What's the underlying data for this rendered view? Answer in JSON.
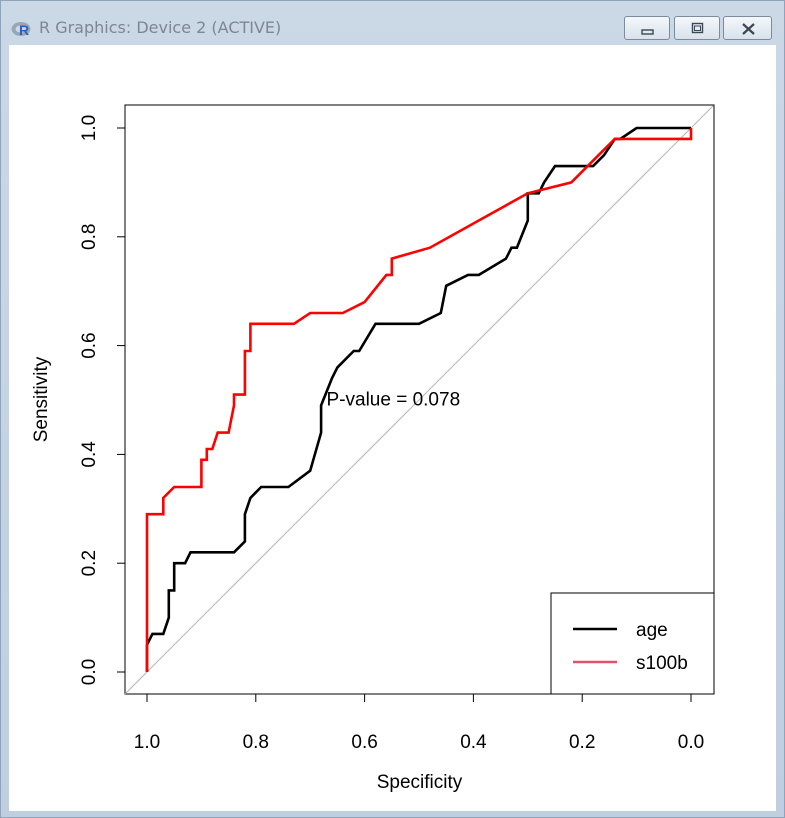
{
  "window": {
    "title": "R Graphics: Device 2 (ACTIVE)",
    "logo_letter": "R",
    "buttons": [
      "minimize",
      "maximize",
      "close"
    ]
  },
  "chart_data": {
    "type": "line",
    "xlabel": "Specificity",
    "ylabel": "Sensitivity",
    "x_reversed": true,
    "xlim": [
      1.0,
      0.0
    ],
    "ylim": [
      0.0,
      1.0
    ],
    "xticks": [
      1.0,
      0.8,
      0.6,
      0.4,
      0.2,
      0.0
    ],
    "xtick_labels": [
      "1.0",
      "0.8",
      "0.6",
      "0.4",
      "0.2",
      "0.0"
    ],
    "yticks": [
      0.0,
      0.2,
      0.4,
      0.6,
      0.8,
      1.0
    ],
    "ytick_labels": [
      "0.0",
      "0.2",
      "0.4",
      "0.6",
      "0.8",
      "1.0"
    ],
    "annotation": "P-value = 0.078",
    "annotation_at": [
      0.67,
      0.49
    ],
    "reference_line": {
      "from": [
        1.0,
        0.0
      ],
      "to": [
        0.0,
        1.0
      ],
      "color": "#b4b4b4"
    },
    "legend": {
      "position": "bottom-right",
      "entries": [
        "age",
        "s100b"
      ]
    },
    "series": [
      {
        "name": "age",
        "color": "#000000",
        "points": [
          [
            1.0,
            0.0
          ],
          [
            1.0,
            0.05
          ],
          [
            0.99,
            0.07
          ],
          [
            0.97,
            0.07
          ],
          [
            0.96,
            0.1
          ],
          [
            0.96,
            0.15
          ],
          [
            0.95,
            0.15
          ],
          [
            0.95,
            0.2
          ],
          [
            0.93,
            0.2
          ],
          [
            0.92,
            0.22
          ],
          [
            0.84,
            0.22
          ],
          [
            0.82,
            0.24
          ],
          [
            0.82,
            0.29
          ],
          [
            0.81,
            0.32
          ],
          [
            0.79,
            0.34
          ],
          [
            0.74,
            0.34
          ],
          [
            0.7,
            0.37
          ],
          [
            0.68,
            0.44
          ],
          [
            0.68,
            0.49
          ],
          [
            0.66,
            0.54
          ],
          [
            0.65,
            0.56
          ],
          [
            0.62,
            0.59
          ],
          [
            0.61,
            0.59
          ],
          [
            0.58,
            0.64
          ],
          [
            0.5,
            0.64
          ],
          [
            0.46,
            0.66
          ],
          [
            0.45,
            0.71
          ],
          [
            0.41,
            0.73
          ],
          [
            0.39,
            0.73
          ],
          [
            0.34,
            0.76
          ],
          [
            0.33,
            0.78
          ],
          [
            0.32,
            0.78
          ],
          [
            0.3,
            0.83
          ],
          [
            0.3,
            0.88
          ],
          [
            0.28,
            0.88
          ],
          [
            0.27,
            0.9
          ],
          [
            0.25,
            0.93
          ],
          [
            0.18,
            0.93
          ],
          [
            0.16,
            0.95
          ],
          [
            0.14,
            0.98
          ],
          [
            0.13,
            0.98
          ],
          [
            0.1,
            1.0
          ],
          [
            0.0,
            1.0
          ]
        ]
      },
      {
        "name": "s100b",
        "color": "#ff0000",
        "legend_color": "#df536b",
        "points": [
          [
            1.0,
            0.0
          ],
          [
            1.0,
            0.29
          ],
          [
            0.97,
            0.29
          ],
          [
            0.97,
            0.32
          ],
          [
            0.95,
            0.34
          ],
          [
            0.9,
            0.34
          ],
          [
            0.9,
            0.39
          ],
          [
            0.89,
            0.39
          ],
          [
            0.89,
            0.41
          ],
          [
            0.88,
            0.41
          ],
          [
            0.87,
            0.44
          ],
          [
            0.85,
            0.44
          ],
          [
            0.84,
            0.49
          ],
          [
            0.84,
            0.51
          ],
          [
            0.82,
            0.51
          ],
          [
            0.82,
            0.59
          ],
          [
            0.81,
            0.59
          ],
          [
            0.81,
            0.64
          ],
          [
            0.73,
            0.64
          ],
          [
            0.7,
            0.66
          ],
          [
            0.64,
            0.66
          ],
          [
            0.6,
            0.68
          ],
          [
            0.56,
            0.73
          ],
          [
            0.55,
            0.73
          ],
          [
            0.55,
            0.76
          ],
          [
            0.48,
            0.78
          ],
          [
            0.39,
            0.83
          ],
          [
            0.3,
            0.88
          ],
          [
            0.22,
            0.9
          ],
          [
            0.17,
            0.95
          ],
          [
            0.14,
            0.98
          ],
          [
            0.0,
            0.98
          ],
          [
            0.0,
            1.0
          ]
        ]
      }
    ]
  }
}
